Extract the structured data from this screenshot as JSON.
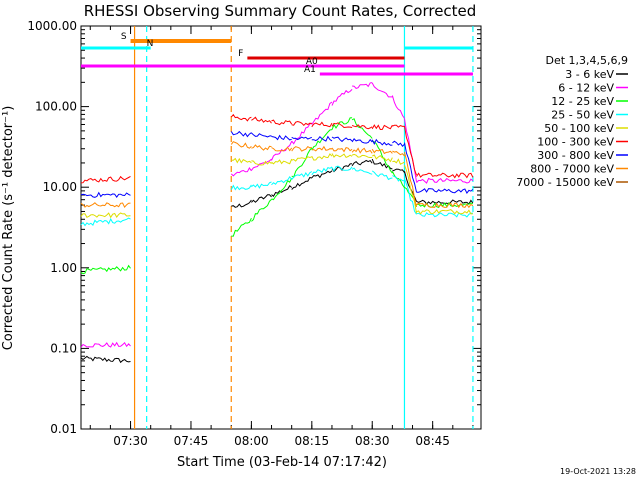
{
  "chart_data": {
    "type": "line",
    "title": "RHESSI Observing Summary Count Rates, Corrected",
    "xlabel": "Start Time (03-Feb-14 07:17:42)",
    "ylabel": "Corrected Count Rate (s⁻¹ detector⁻¹)",
    "yscale": "log",
    "ylim": [
      0.01,
      1000
    ],
    "xlim": [
      "07:17:42",
      "08:57:00"
    ],
    "x_tick_labels": [
      "07:30",
      "07:45",
      "08:00",
      "08:15",
      "08:30",
      "08:45"
    ],
    "y_tick_labels": [
      "0.01",
      "0.10",
      "1.00",
      "10.00",
      "100.00",
      "1000.00"
    ],
    "grid": false,
    "legend_position": "right",
    "legend_title": "Det 1,3,4,5,6,9",
    "footer_date": "19-Oct-2021 13:28",
    "time_axis": [
      "07:17:42",
      "07:30",
      "07:31",
      "07:55",
      "08:00",
      "08:05",
      "08:10",
      "08:15",
      "08:20",
      "08:25",
      "08:30",
      "08:35",
      "08:38",
      "08:41",
      "08:55"
    ],
    "series": [
      {
        "name": "3 - 6 keV",
        "color": "#000000",
        "values": [
          0.075,
          0.07,
          null,
          5.5,
          6.5,
          8,
          10,
          13,
          16,
          19,
          21,
          17,
          15,
          6.5,
          6.5
        ]
      },
      {
        "name": "6 - 12 keV",
        "color": "#ff00ff",
        "values": [
          0.11,
          0.11,
          null,
          14,
          17,
          22,
          35,
          60,
          110,
          170,
          190,
          130,
          70,
          12,
          12
        ]
      },
      {
        "name": "12 - 25 keV",
        "color": "#00ff00",
        "values": [
          0.9,
          1.0,
          null,
          2.5,
          4,
          7,
          13,
          30,
          55,
          70,
          40,
          15,
          10,
          6,
          6
        ]
      },
      {
        "name": "25 - 50 keV",
        "color": "#00ffff",
        "values": [
          3.5,
          4,
          null,
          10,
          10,
          11,
          13,
          15,
          17,
          17,
          15,
          13,
          12,
          4.5,
          4.5
        ]
      },
      {
        "name": "50 - 100 keV",
        "color": "#dddd00",
        "values": [
          4.5,
          4.5,
          null,
          22,
          20,
          20,
          21,
          23,
          25,
          25,
          24,
          22,
          20,
          5,
          5
        ]
      },
      {
        "name": "100 - 300 keV",
        "color": "#ff0000",
        "values": [
          12,
          13,
          null,
          75,
          70,
          65,
          62,
          60,
          60,
          58,
          56,
          55,
          55,
          14,
          14
        ]
      },
      {
        "name": "300 - 800 keV",
        "color": "#0000ff",
        "values": [
          8,
          8,
          null,
          48,
          45,
          42,
          40,
          40,
          40,
          38,
          37,
          35,
          34,
          9,
          9
        ]
      },
      {
        "name": "800 - 7000 keV",
        "color": "#ff8800",
        "values": [
          6,
          6,
          null,
          35,
          32,
          30,
          30,
          30,
          30,
          29,
          28,
          27,
          26,
          6,
          6
        ]
      },
      {
        "name": "7000 - 15000 keV",
        "color": "#aa5500",
        "values": [
          null,
          null,
          null,
          null,
          null,
          null,
          null,
          null,
          null,
          null,
          null,
          null,
          null,
          null,
          null
        ]
      }
    ],
    "event_flags": [
      {
        "label": "S",
        "color": "#ff8800",
        "start": "07:30",
        "end": "07:55"
      },
      {
        "label": "N",
        "color": "#00ffff",
        "start": "07:17:42",
        "end": "07:35"
      },
      {
        "label": "N",
        "color": "#00ffff",
        "start": "08:38",
        "end": "08:55"
      },
      {
        "label": "F",
        "color": "#dd0000",
        "start": "07:59",
        "end": "08:38"
      },
      {
        "label": "A0",
        "color": "#ff00ff",
        "start": "07:17:42",
        "end": "08:38"
      },
      {
        "label": "A1",
        "color": "#ff00ff",
        "start": "08:17",
        "end": "08:55"
      }
    ],
    "vertical_markers": [
      {
        "time": "07:31",
        "color": "#ff8800",
        "style": "solid"
      },
      {
        "time": "07:34",
        "color": "#00ffff",
        "style": "dashed"
      },
      {
        "time": "07:55",
        "color": "#ff8800",
        "style": "dashed"
      },
      {
        "time": "08:38",
        "color": "#00ffff",
        "style": "solid"
      },
      {
        "time": "08:55",
        "color": "#00ffff",
        "style": "dashed"
      }
    ]
  }
}
